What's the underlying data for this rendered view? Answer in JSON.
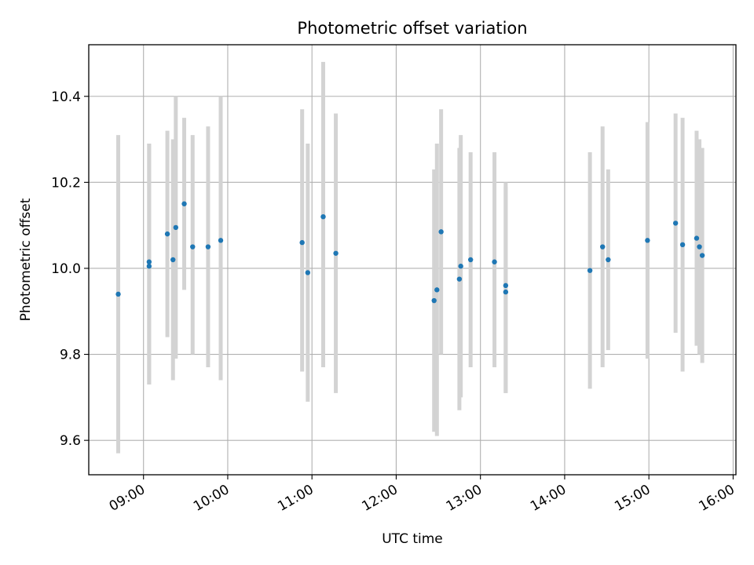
{
  "chart_data": {
    "type": "scatter",
    "title": "Photometric offset variation",
    "xlabel": "UTC time",
    "ylabel": "Photometric offset",
    "x_axis_type": "time",
    "xlim": [
      "08:21",
      "16:02"
    ],
    "ylim": [
      9.52,
      10.52
    ],
    "x_ticks": [
      "09:00",
      "10:00",
      "11:00",
      "12:00",
      "13:00",
      "14:00",
      "15:00",
      "16:00"
    ],
    "y_ticks": [
      "9.6",
      "9.8",
      "10.0",
      "10.2",
      "10.4"
    ],
    "grid": true,
    "errorbar_color": "#d3d3d3",
    "marker_color": "#1f77b4",
    "points": [
      {
        "x": "08:42",
        "y": 9.94,
        "err_low": 9.57,
        "err_high": 10.31
      },
      {
        "x": "09:04",
        "y": 10.005,
        "err_low": 9.73,
        "err_high": 10.29
      },
      {
        "x": "09:04",
        "y": 10.015,
        "err_low": 9.73,
        "err_high": 10.29
      },
      {
        "x": "09:17",
        "y": 10.08,
        "err_low": 9.84,
        "err_high": 10.32
      },
      {
        "x": "09:21",
        "y": 10.02,
        "err_low": 9.74,
        "err_high": 10.3
      },
      {
        "x": "09:23",
        "y": 10.095,
        "err_low": 9.79,
        "err_high": 10.4
      },
      {
        "x": "09:29",
        "y": 10.15,
        "err_low": 9.95,
        "err_high": 10.35
      },
      {
        "x": "09:35",
        "y": 10.05,
        "err_low": 9.8,
        "err_high": 10.31
      },
      {
        "x": "09:46",
        "y": 10.05,
        "err_low": 9.77,
        "err_high": 10.33
      },
      {
        "x": "09:55",
        "y": 10.065,
        "err_low": 9.74,
        "err_high": 10.4
      },
      {
        "x": "10:53",
        "y": 10.06,
        "err_low": 9.76,
        "err_high": 10.37
      },
      {
        "x": "10:57",
        "y": 9.99,
        "err_low": 9.69,
        "err_high": 10.29
      },
      {
        "x": "11:08",
        "y": 10.12,
        "err_low": 9.77,
        "err_high": 10.48
      },
      {
        "x": "11:17",
        "y": 10.035,
        "err_low": 9.71,
        "err_high": 10.36
      },
      {
        "x": "12:27",
        "y": 9.925,
        "err_low": 9.62,
        "err_high": 10.23
      },
      {
        "x": "12:29",
        "y": 9.95,
        "err_low": 9.61,
        "err_high": 10.29
      },
      {
        "x": "12:32",
        "y": 10.085,
        "err_low": 9.8,
        "err_high": 10.37
      },
      {
        "x": "12:45",
        "y": 9.975,
        "err_low": 9.67,
        "err_high": 10.28
      },
      {
        "x": "12:46",
        "y": 10.005,
        "err_low": 9.7,
        "err_high": 10.31
      },
      {
        "x": "12:53",
        "y": 10.02,
        "err_low": 9.77,
        "err_high": 10.27
      },
      {
        "x": "13:10",
        "y": 10.015,
        "err_low": 9.77,
        "err_high": 10.27
      },
      {
        "x": "13:18",
        "y": 9.96,
        "err_low": 9.71,
        "err_high": 10.2
      },
      {
        "x": "13:18",
        "y": 9.945,
        "err_low": 9.71,
        "err_high": 10.19
      },
      {
        "x": "14:18",
        "y": 9.995,
        "err_low": 9.72,
        "err_high": 10.27
      },
      {
        "x": "14:27",
        "y": 10.05,
        "err_low": 9.77,
        "err_high": 10.33
      },
      {
        "x": "14:31",
        "y": 10.02,
        "err_low": 9.81,
        "err_high": 10.23
      },
      {
        "x": "14:59",
        "y": 10.065,
        "err_low": 9.79,
        "err_high": 10.34
      },
      {
        "x": "15:19",
        "y": 10.105,
        "err_low": 9.85,
        "err_high": 10.36
      },
      {
        "x": "15:24",
        "y": 10.055,
        "err_low": 9.76,
        "err_high": 10.35
      },
      {
        "x": "15:34",
        "y": 10.07,
        "err_low": 9.82,
        "err_high": 10.32
      },
      {
        "x": "15:36",
        "y": 10.05,
        "err_low": 9.8,
        "err_high": 10.3
      },
      {
        "x": "15:38",
        "y": 10.03,
        "err_low": 9.78,
        "err_high": 10.28
      }
    ]
  }
}
